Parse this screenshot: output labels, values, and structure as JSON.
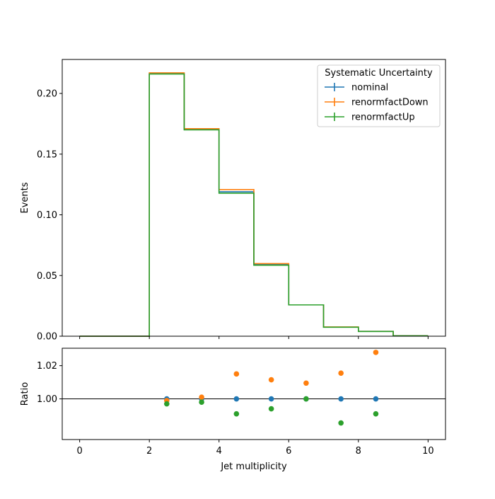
{
  "chart_data": {
    "type": "step",
    "xlabel": "Jet multiplicity",
    "xlim": [
      -0.5,
      10.5
    ],
    "x_ticks": [
      0,
      2,
      4,
      6,
      8,
      10
    ],
    "bin_edges": [
      0,
      1,
      2,
      3,
      4,
      5,
      6,
      7,
      8,
      9,
      10
    ],
    "top": {
      "ylabel": "Events",
      "ylim": [
        0,
        0.228
      ],
      "y_ticks": [
        "0.00",
        "0.05",
        "0.10",
        "0.15",
        "0.20"
      ],
      "series": [
        {
          "name": "nominal",
          "color": "#1f77b4",
          "values": [
            0,
            0,
            0.2165,
            0.1705,
            0.119,
            0.059,
            0.0258,
            0.0075,
            0.004,
            0.0003
          ]
        },
        {
          "name": "renormfactDown",
          "color": "#ff7f0e",
          "values": [
            0,
            0,
            0.217,
            0.171,
            0.1208,
            0.0598,
            0.0258,
            0.0076,
            0.004,
            0.0003
          ]
        },
        {
          "name": "renormfactUp",
          "color": "#2ca02c",
          "values": [
            0,
            0,
            0.216,
            0.17,
            0.1178,
            0.0585,
            0.0258,
            0.0074,
            0.0039,
            0.0003
          ]
        }
      ]
    },
    "legend": {
      "title": "Systematic Uncertainty",
      "placement": "upper-right",
      "entries": [
        "nominal",
        "renormfactDown",
        "renormfactUp"
      ]
    },
    "ratio": {
      "ylabel": "Ratio",
      "ylim": [
        0.9755,
        1.0305
      ],
      "y_ticks": [
        "1.00",
        "1.02"
      ],
      "reference_line": 1.0,
      "x": [
        2.5,
        3.5,
        4.5,
        5.5,
        6.5,
        7.5,
        8.5
      ],
      "series": [
        {
          "name": "nominal",
          "color": "#1f77b4",
          "values": [
            1.0,
            1.0,
            1.0,
            1.0,
            1.0,
            1.0,
            1.0
          ]
        },
        {
          "name": "renormfactDown",
          "color": "#ff7f0e",
          "values": [
            0.999,
            1.001,
            1.015,
            1.0115,
            1.0095,
            1.0155,
            1.028
          ]
        },
        {
          "name": "renormfactUp",
          "color": "#2ca02c",
          "values": [
            0.997,
            0.998,
            0.991,
            0.994,
            1.0,
            0.9855,
            0.991
          ]
        }
      ]
    }
  }
}
